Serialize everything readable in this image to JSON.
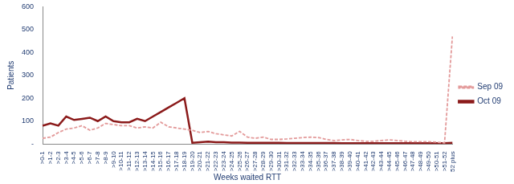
{
  "chart_data": {
    "type": "line",
    "x_label": "Weeks waited RTT",
    "y_label": "Patients",
    "categories": [
      ">0-1",
      ">1-2",
      ">2-3",
      ">3-4",
      ">4-5",
      ">5-6",
      ">6-7",
      ">7-8",
      ">8-9",
      ">9-10",
      ">10-11",
      ">11-12",
      ">12-13",
      ">13-14",
      ">14-15",
      ">15-16",
      ">16-17",
      ">17-18",
      ">18-19",
      ">19-20",
      ">20-21",
      ">21-22",
      ">22-23",
      ">23-24",
      ">24-25",
      ">25-26",
      ">26-27",
      ">27-28",
      ">28-29",
      ">29-30",
      ">30-31",
      ">31-32",
      ">32-33",
      ">33-34",
      ">34-35",
      ">35-36",
      ">36-37",
      ">37-38",
      ">38-39",
      ">39-40",
      ">40-41",
      ">41-42",
      ">42-43",
      ">43-44",
      ">44-45",
      ">45-46",
      ">46-47",
      ">47-48",
      ">48-49",
      ">49-50",
      ">50-51",
      ">51-52",
      "52 plus"
    ],
    "series": [
      {
        "name": "Sep 09",
        "color": "#e39a9a",
        "line_style": "dashed",
        "values": [
          25,
          30,
          50,
          65,
          70,
          80,
          60,
          70,
          90,
          85,
          80,
          80,
          70,
          75,
          70,
          95,
          75,
          70,
          65,
          60,
          50,
          55,
          45,
          40,
          35,
          55,
          30,
          25,
          30,
          20,
          20,
          22,
          25,
          28,
          30,
          28,
          20,
          15,
          18,
          20,
          15,
          12,
          12,
          15,
          18,
          15,
          12,
          10,
          10,
          10,
          8,
          5,
          470
        ]
      },
      {
        "name": "Oct 09",
        "color": "#8b1a1a",
        "line_style": "solid",
        "values": [
          80,
          90,
          80,
          120,
          105,
          110,
          115,
          100,
          120,
          100,
          95,
          95,
          110,
          100,
          120,
          140,
          160,
          180,
          200,
          5,
          8,
          10,
          8,
          8,
          6,
          6,
          5,
          5,
          5,
          5,
          5,
          4,
          4,
          4,
          4,
          4,
          4,
          4,
          3,
          3,
          3,
          3,
          3,
          3,
          3,
          3,
          3,
          3,
          3,
          3,
          3,
          3,
          5
        ]
      }
    ],
    "ylim": [
      0,
      600
    ],
    "yticks": [
      {
        "value": 0,
        "label": "-"
      },
      100,
      200,
      300,
      400,
      500,
      600
    ],
    "grid": false,
    "legend": "right"
  }
}
